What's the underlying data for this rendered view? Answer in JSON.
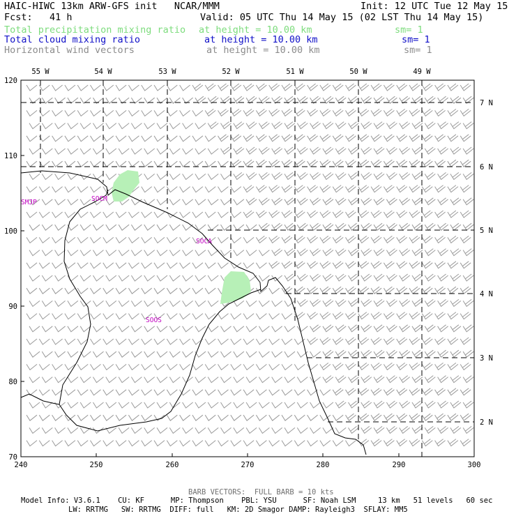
{
  "header": {
    "line1_left": "HAIC-HIWC 13km ARW-GFS init   NCAR/MMM",
    "line1_right": "Init: 12 UTC Tue 12 May 15",
    "line2_left": "Fcst:   41 h",
    "line2_right": "Valid: 05 UTC Thu 14 May 15 (02 LST Thu 14 May 15)",
    "fields": [
      {
        "name": "Total precipitation mixing ratio",
        "height": "at height = 10.00 km",
        "sm": "sm= 1",
        "color": "#7ddc7d"
      },
      {
        "name": "Total cloud mixing ratio",
        "height": "at height = 10.00 km",
        "sm": "sm= 1",
        "color": "#1010c8"
      },
      {
        "name": "Horizontal wind vectors",
        "height": "at height = 10.00 km",
        "sm": "sm= 1",
        "color": "#8c8c8c"
      }
    ]
  },
  "axes": {
    "x_ticks": [
      "240",
      "250",
      "260",
      "270",
      "280",
      "290",
      "300"
    ],
    "y_ticks": [
      "70",
      "80",
      "90",
      "100",
      "110",
      "120"
    ],
    "lon_labels": [
      "55 W",
      "54 W",
      "53 W",
      "52 W",
      "51 W",
      "50 W",
      "49 W"
    ],
    "lat_labels": [
      "7 N",
      "6 N",
      "5 N",
      "4 N",
      "3 N",
      "2 N"
    ]
  },
  "stations": [
    "SMJP",
    "SOCM",
    "SOCA",
    "SOOS"
  ],
  "footer": {
    "barb_note": "BARB VECTORS:  FULL BARB = 10 kts",
    "line1": "Model Info: V3.6.1    CU: KF      MP: Thompson    PBL: YSU      SF: Noah LSM     13 km   51 levels   60 sec",
    "line2": "LW: RRTMG   SW: RRTMG  DIFF: full   KM: 2D Smagor DAMP: Rayleigh3  SFLAY: MM5"
  }
}
